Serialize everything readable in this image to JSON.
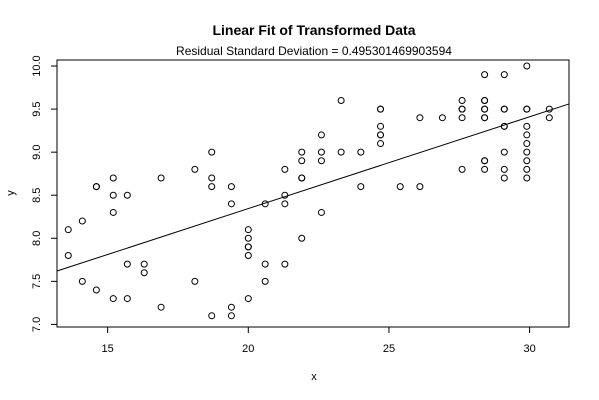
{
  "chart_data": {
    "type": "scatter",
    "title": "Linear Fit of Transformed Data",
    "subtitle": "Residual Standard Deviation =  0.495301469903594",
    "xlabel": "x",
    "ylabel": "y",
    "xlim": [
      13.2,
      31.4
    ],
    "ylim": [
      6.97,
      10.07
    ],
    "x_ticks": [
      15,
      20,
      25,
      30
    ],
    "y_ticks": [
      7.0,
      7.5,
      8.0,
      8.5,
      9.0,
      9.5,
      10.0
    ],
    "x_tick_labels": [
      "15",
      "20",
      "25",
      "30"
    ],
    "y_tick_labels": [
      "7.0",
      "7.5",
      "8.0",
      "8.5",
      "9.0",
      "9.5",
      "10.0"
    ],
    "grid": false,
    "points": [
      {
        "x": 13.6,
        "y": 8.1
      },
      {
        "x": 13.6,
        "y": 7.8
      },
      {
        "x": 14.1,
        "y": 8.2
      },
      {
        "x": 14.1,
        "y": 7.5
      },
      {
        "x": 14.6,
        "y": 8.6
      },
      {
        "x": 14.6,
        "y": 8.6
      },
      {
        "x": 14.6,
        "y": 7.4
      },
      {
        "x": 15.2,
        "y": 8.7
      },
      {
        "x": 15.2,
        "y": 8.5
      },
      {
        "x": 15.2,
        "y": 8.3
      },
      {
        "x": 15.2,
        "y": 7.3
      },
      {
        "x": 15.7,
        "y": 8.5
      },
      {
        "x": 15.7,
        "y": 7.7
      },
      {
        "x": 15.7,
        "y": 7.3
      },
      {
        "x": 16.3,
        "y": 7.7
      },
      {
        "x": 16.3,
        "y": 7.6
      },
      {
        "x": 16.9,
        "y": 8.7
      },
      {
        "x": 16.9,
        "y": 7.2
      },
      {
        "x": 18.1,
        "y": 8.8
      },
      {
        "x": 18.1,
        "y": 7.5
      },
      {
        "x": 18.7,
        "y": 9.0
      },
      {
        "x": 18.7,
        "y": 8.7
      },
      {
        "x": 18.7,
        "y": 8.6
      },
      {
        "x": 18.7,
        "y": 7.1
      },
      {
        "x": 19.4,
        "y": 8.6
      },
      {
        "x": 19.4,
        "y": 8.4
      },
      {
        "x": 19.4,
        "y": 7.2
      },
      {
        "x": 19.4,
        "y": 7.1
      },
      {
        "x": 20.0,
        "y": 8.1
      },
      {
        "x": 20.0,
        "y": 8.0
      },
      {
        "x": 20.0,
        "y": 7.9
      },
      {
        "x": 20.0,
        "y": 7.9
      },
      {
        "x": 20.0,
        "y": 7.8
      },
      {
        "x": 20.0,
        "y": 7.3
      },
      {
        "x": 20.6,
        "y": 8.4
      },
      {
        "x": 20.6,
        "y": 7.7
      },
      {
        "x": 20.6,
        "y": 7.5
      },
      {
        "x": 21.3,
        "y": 8.8
      },
      {
        "x": 21.3,
        "y": 8.5
      },
      {
        "x": 21.3,
        "y": 8.4
      },
      {
        "x": 21.3,
        "y": 7.7
      },
      {
        "x": 21.9,
        "y": 9.0
      },
      {
        "x": 21.9,
        "y": 8.9
      },
      {
        "x": 21.9,
        "y": 8.7
      },
      {
        "x": 21.9,
        "y": 8.7
      },
      {
        "x": 21.9,
        "y": 8.0
      },
      {
        "x": 22.6,
        "y": 9.2
      },
      {
        "x": 22.6,
        "y": 9.0
      },
      {
        "x": 22.6,
        "y": 8.9
      },
      {
        "x": 22.6,
        "y": 8.3
      },
      {
        "x": 23.3,
        "y": 9.6
      },
      {
        "x": 23.3,
        "y": 9.0
      },
      {
        "x": 24.0,
        "y": 9.0
      },
      {
        "x": 24.0,
        "y": 8.6
      },
      {
        "x": 24.7,
        "y": 9.5
      },
      {
        "x": 24.7,
        "y": 9.5
      },
      {
        "x": 24.7,
        "y": 9.3
      },
      {
        "x": 24.7,
        "y": 9.2
      },
      {
        "x": 24.7,
        "y": 9.2
      },
      {
        "x": 24.7,
        "y": 9.1
      },
      {
        "x": 25.4,
        "y": 8.6
      },
      {
        "x": 26.1,
        "y": 9.4
      },
      {
        "x": 26.1,
        "y": 8.6
      },
      {
        "x": 26.9,
        "y": 9.4
      },
      {
        "x": 27.6,
        "y": 9.6
      },
      {
        "x": 27.6,
        "y": 9.5
      },
      {
        "x": 27.6,
        "y": 9.5
      },
      {
        "x": 27.6,
        "y": 9.4
      },
      {
        "x": 27.6,
        "y": 8.8
      },
      {
        "x": 28.4,
        "y": 9.9
      },
      {
        "x": 28.4,
        "y": 9.6
      },
      {
        "x": 28.4,
        "y": 9.6
      },
      {
        "x": 28.4,
        "y": 9.5
      },
      {
        "x": 28.4,
        "y": 9.5
      },
      {
        "x": 28.4,
        "y": 9.4
      },
      {
        "x": 28.4,
        "y": 9.4
      },
      {
        "x": 28.4,
        "y": 8.9
      },
      {
        "x": 28.4,
        "y": 8.9
      },
      {
        "x": 28.4,
        "y": 8.8
      },
      {
        "x": 29.1,
        "y": 9.9
      },
      {
        "x": 29.1,
        "y": 9.5
      },
      {
        "x": 29.1,
        "y": 9.5
      },
      {
        "x": 29.1,
        "y": 9.3
      },
      {
        "x": 29.1,
        "y": 9.3
      },
      {
        "x": 29.1,
        "y": 9.0
      },
      {
        "x": 29.1,
        "y": 8.8
      },
      {
        "x": 29.1,
        "y": 8.7
      },
      {
        "x": 29.9,
        "y": 10.0
      },
      {
        "x": 29.9,
        "y": 9.5
      },
      {
        "x": 29.9,
        "y": 9.5
      },
      {
        "x": 29.9,
        "y": 9.3
      },
      {
        "x": 29.9,
        "y": 9.2
      },
      {
        "x": 29.9,
        "y": 9.1
      },
      {
        "x": 29.9,
        "y": 9.0
      },
      {
        "x": 29.9,
        "y": 8.9
      },
      {
        "x": 29.9,
        "y": 8.8
      },
      {
        "x": 29.9,
        "y": 8.7
      },
      {
        "x": 30.7,
        "y": 9.5
      },
      {
        "x": 30.7,
        "y": 9.4
      }
    ],
    "fit_line": {
      "x": [
        13.2,
        31.4
      ],
      "y": [
        7.62,
        9.56
      ]
    },
    "colors": {
      "points": "#000000",
      "line": "#000000",
      "axis": "#000000",
      "background": "#ffffff"
    }
  }
}
